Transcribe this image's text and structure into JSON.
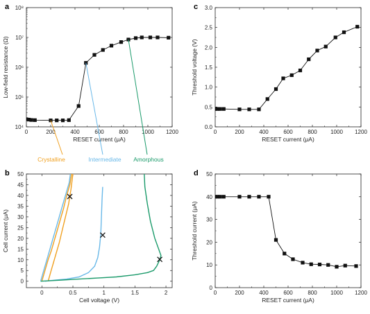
{
  "colors": {
    "black": "#111111",
    "crystalline": "#f0a020",
    "intermediate": "#68b8e8",
    "amorphous": "#1a9a6a",
    "cross": "#111111"
  },
  "chart_data": [
    {
      "panel": "a",
      "type": "line",
      "xlabel": "RESET current (μA)",
      "ylabel": "Low-field resistance (Ω)",
      "xlim": [
        0,
        1200
      ],
      "ylim": [
        10000,
        100000000
      ],
      "yscale": "log",
      "xticks": [
        0,
        200,
        400,
        600,
        800,
        1000,
        1200
      ],
      "yticks": [
        {
          "value": 10000,
          "label": "10⁴"
        },
        {
          "value": 100000,
          "label": "10⁵"
        },
        {
          "value": 1000000,
          "label": "10⁶"
        },
        {
          "value": 10000000,
          "label": "10⁷"
        },
        {
          "value": 100000000,
          "label": "10⁸"
        }
      ],
      "series": [
        {
          "color": "black",
          "marker": "square",
          "x": [
            0,
            20,
            40,
            70,
            200,
            250,
            300,
            350,
            430,
            490,
            560,
            630,
            700,
            780,
            840,
            900,
            950,
            1020,
            1080,
            1170
          ],
          "y": [
            18000,
            17500,
            17000,
            16800,
            16500,
            16500,
            16500,
            16800,
            50000,
            1400000,
            2600000,
            3800000,
            5300000,
            7000000,
            8500000,
            9500000,
            10000000,
            10000000,
            10000000,
            9800000
          ]
        }
      ],
      "annotations": [
        {
          "label": "Crystalline",
          "color": "crystalline",
          "from_x": 200,
          "from_y": 16500
        },
        {
          "label": "Intermediate",
          "color": "intermediate",
          "from_x": 490,
          "from_y": 1400000
        },
        {
          "label": "Amorphous",
          "color": "amorphous",
          "from_x": 840,
          "from_y": 8500000
        }
      ]
    },
    {
      "panel": "b",
      "type": "line",
      "xlabel": "Cell voltage (V)",
      "ylabel": "Cell current (μA)",
      "xlim": [
        -0.25,
        2.1
      ],
      "ylim": [
        -3,
        50
      ],
      "xticks": [
        0.0,
        0.5,
        1.0,
        1.5,
        2.0
      ],
      "yticks": [
        0,
        5,
        10,
        15,
        20,
        25,
        30,
        35,
        40,
        45,
        50
      ],
      "series": [
        {
          "color": "crystalline",
          "x": [
            0.0,
            0.05,
            0.1,
            0.15,
            0.2,
            0.25,
            0.3,
            0.35,
            0.4,
            0.45,
            0.48
          ],
          "y": [
            0,
            5,
            10,
            14,
            19,
            24,
            29,
            34,
            40,
            45,
            50
          ]
        },
        {
          "color": "crystalline",
          "x": [
            0.1,
            0.12,
            0.15,
            0.18,
            0.22,
            0.28,
            0.33,
            0.38,
            0.43,
            0.47,
            0.5
          ],
          "y": [
            0,
            2,
            5,
            8,
            12,
            18,
            24,
            30,
            36,
            43,
            50
          ]
        },
        {
          "color": "intermediate",
          "x": [
            -0.02,
            0.03,
            0.1,
            0.17,
            0.24,
            0.3,
            0.36,
            0.4,
            0.44,
            0.46
          ],
          "y": [
            0,
            5,
            12,
            19,
            26,
            32,
            38,
            42,
            46,
            50
          ]
        },
        {
          "color": "intermediate",
          "x": [
            0.05,
            0.2,
            0.4,
            0.6,
            0.75,
            0.85,
            0.9,
            0.93,
            0.95,
            0.96,
            0.97,
            0.98
          ],
          "y": [
            0,
            0.5,
            1,
            2,
            4,
            7,
            11,
            16,
            22,
            30,
            38,
            44
          ]
        },
        {
          "color": "amorphous",
          "x": [
            -0.02,
            0.3,
            0.6,
            0.9,
            1.2,
            1.5,
            1.7,
            1.8,
            1.85,
            1.9,
            1.92,
            1.82,
            1.75,
            1.7,
            1.66,
            1.65
          ],
          "y": [
            0,
            0.5,
            1,
            1.5,
            2,
            3,
            4,
            5,
            7,
            10,
            12,
            20,
            28,
            36,
            44,
            50
          ]
        }
      ],
      "markers": [
        {
          "x": 0.45,
          "y": 39.5
        },
        {
          "x": 0.98,
          "y": 21.5
        },
        {
          "x": 1.9,
          "y": 10.2
        }
      ]
    },
    {
      "panel": "c",
      "type": "line",
      "xlabel": "RESET current (μA)",
      "ylabel": "Threshold voltage (V)",
      "xlim": [
        0,
        1200
      ],
      "ylim": [
        0,
        3
      ],
      "xticks": [
        0,
        200,
        400,
        600,
        800,
        1000,
        1200
      ],
      "yticks": [
        0.0,
        0.5,
        1.0,
        1.5,
        2.0,
        2.5,
        3.0
      ],
      "series": [
        {
          "color": "black",
          "marker": "square",
          "x": [
            0,
            20,
            40,
            70,
            200,
            280,
            360,
            430,
            500,
            560,
            630,
            700,
            770,
            840,
            910,
            990,
            1060,
            1170
          ],
          "y": [
            0.45,
            0.45,
            0.45,
            0.45,
            0.44,
            0.44,
            0.44,
            0.7,
            0.95,
            1.22,
            1.3,
            1.42,
            1.7,
            1.92,
            2.02,
            2.25,
            2.38,
            2.52
          ]
        }
      ]
    },
    {
      "panel": "d",
      "type": "line",
      "xlabel": "RESET current (μA)",
      "ylabel": "Threshold current (μA)",
      "xlim": [
        0,
        1200
      ],
      "ylim": [
        0,
        50
      ],
      "xticks": [
        0,
        200,
        400,
        600,
        800,
        1000,
        1200
      ],
      "yticks": [
        0,
        10,
        20,
        30,
        40,
        50
      ],
      "series": [
        {
          "color": "black",
          "marker": "square",
          "x": [
            0,
            20,
            40,
            70,
            200,
            280,
            360,
            440,
            500,
            570,
            640,
            720,
            790,
            860,
            930,
            1000,
            1070,
            1160
          ],
          "y": [
            40,
            40,
            40,
            40,
            40,
            40,
            40,
            40,
            21,
            15,
            12.5,
            11,
            10.3,
            10.2,
            10,
            9.2,
            9.7,
            9.5
          ]
        }
      ]
    }
  ]
}
